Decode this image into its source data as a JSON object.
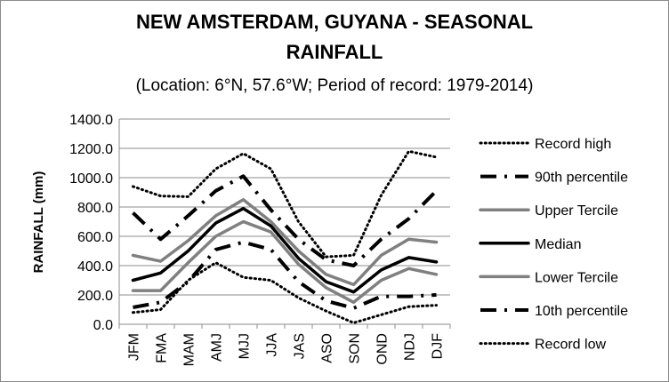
{
  "chart_data": {
    "type": "line",
    "title_line1": "NEW AMSTERDAM, GUYANA - SEASONAL",
    "title_line2": "RAINFALL",
    "subtitle": "(Location: 6°N, 57.6°W; Period of record: 1979-2014)",
    "ylabel": "RAINFALL (mm)",
    "xlabel": "",
    "ylim": [
      0,
      1400
    ],
    "ytick_labels": [
      "0.0",
      "200.0",
      "400.0",
      "600.0",
      "800.0",
      "1000.0",
      "1200.0",
      "1400.0"
    ],
    "yticks": [
      0,
      200,
      400,
      600,
      800,
      1000,
      1200,
      1400
    ],
    "categories": [
      "JFM",
      "FMA",
      "MAM",
      "AMJ",
      "MJJ",
      "JJA",
      "JAS",
      "ASO",
      "SON",
      "OND",
      "NDJ",
      "DJF"
    ],
    "grid": "horizontal",
    "legend_position": "right",
    "series": [
      {
        "name": "Record high",
        "style": "dotted",
        "color": "#000000",
        "values": [
          940,
          875,
          870,
          1060,
          1165,
          1060,
          700,
          460,
          470,
          880,
          1180,
          1140
        ]
      },
      {
        "name": "90th percentile",
        "style": "dashdot",
        "color": "#000000",
        "values": [
          760,
          580,
          740,
          910,
          1010,
          780,
          580,
          440,
          400,
          580,
          720,
          910
        ]
      },
      {
        "name": "Upper Tercile",
        "style": "solid",
        "color": "#808080",
        "values": [
          470,
          430,
          570,
          740,
          850,
          700,
          500,
          340,
          270,
          470,
          580,
          560
        ]
      },
      {
        "name": "Median",
        "style": "solid",
        "color": "#000000",
        "values": [
          300,
          350,
          500,
          690,
          790,
          670,
          450,
          290,
          220,
          370,
          455,
          425
        ]
      },
      {
        "name": "Lower Tercile",
        "style": "solid",
        "color": "#808080",
        "values": [
          230,
          230,
          420,
          600,
          700,
          630,
          410,
          250,
          150,
          300,
          380,
          340
        ]
      },
      {
        "name": "10th percentile",
        "style": "dashdot",
        "color": "#000000",
        "values": [
          115,
          150,
          290,
          510,
          560,
          510,
          290,
          160,
          110,
          190,
          190,
          200
        ]
      },
      {
        "name": "Record low",
        "style": "dotted",
        "color": "#000000",
        "values": [
          80,
          100,
          300,
          420,
          320,
          300,
          180,
          90,
          10,
          65,
          120,
          130
        ]
      }
    ]
  }
}
